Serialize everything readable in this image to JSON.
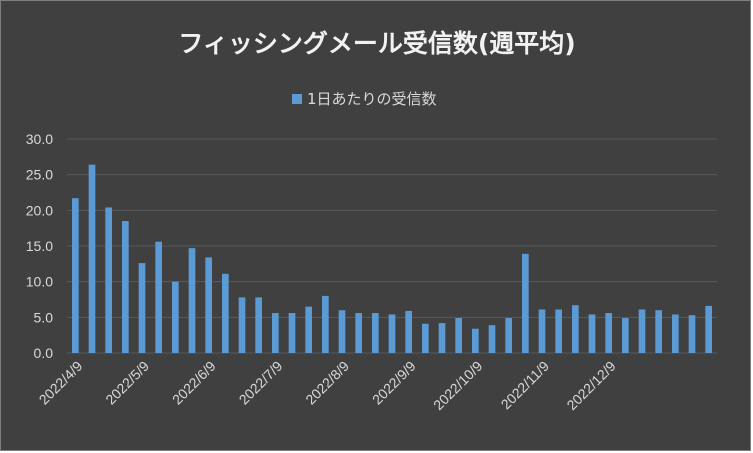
{
  "chart_data": {
    "type": "bar",
    "title": "フィッシングメール受信数(週平均)",
    "legend": "1日あたりの受信数",
    "legend_position": "top",
    "grid": true,
    "ylim": [
      0,
      30
    ],
    "yticks": [
      "0.0",
      "5.0",
      "10.0",
      "15.0",
      "20.0",
      "25.0",
      "30.0"
    ],
    "x_tick_labels": [
      "2022/4/9",
      "2022/5/9",
      "2022/6/9",
      "2022/7/9",
      "2022/8/9",
      "2022/9/9",
      "2022/10/9",
      "2022/11/9",
      "2022/12/9"
    ],
    "x_tick_bar_index": [
      0,
      4,
      8,
      12,
      16,
      20,
      24,
      28,
      32
    ],
    "values": [
      21.7,
      26.4,
      20.4,
      18.5,
      12.6,
      15.6,
      10.0,
      14.7,
      13.4,
      11.1,
      7.8,
      7.8,
      5.6,
      5.6,
      6.5,
      8.0,
      6.0,
      5.6,
      5.6,
      5.4,
      5.9,
      4.1,
      4.2,
      4.9,
      3.4,
      3.9,
      4.9,
      13.9,
      6.1,
      6.1,
      6.7,
      5.4,
      5.6,
      4.9,
      6.1,
      6.0,
      5.4,
      5.3,
      6.6
    ],
    "colors": {
      "bar": "#5b9bd5",
      "grid": "#595959",
      "background": "#404040"
    }
  }
}
